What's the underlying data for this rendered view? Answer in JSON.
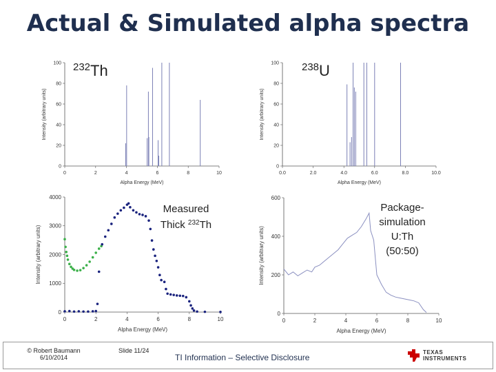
{
  "page": {
    "title": "Actual & Simulated alpha spectra"
  },
  "footer": {
    "author": "© Robert Baumann",
    "date": "6/10/2014",
    "slide": "Slide 11/24",
    "classification": "TI Information – Selective Disclosure",
    "logo_line1": "TEXAS",
    "logo_line2": "INSTRUMENTS",
    "logo_color": "#cc0000"
  },
  "chart_data": [
    {
      "id": "th232-lines",
      "type": "bar",
      "label_mass": "232",
      "label_element": "Th",
      "xlabel": "Alpha Energy (MeV)",
      "ylabel": "Intensity (arbitrary units)",
      "xlim": [
        0,
        10
      ],
      "ylim": [
        0,
        100
      ],
      "xticks": [
        "0",
        "2",
        "4",
        "6",
        "8",
        "10"
      ],
      "yticks": [
        "0",
        "20",
        "40",
        "60",
        "80",
        "100"
      ],
      "color": "#7a7fb5",
      "lines": [
        {
          "x": 3.95,
          "y": 22
        },
        {
          "x": 4.01,
          "y": 78
        },
        {
          "x": 5.34,
          "y": 27
        },
        {
          "x": 5.42,
          "y": 72
        },
        {
          "x": 5.45,
          "y": 28
        },
        {
          "x": 5.69,
          "y": 95
        },
        {
          "x": 6.05,
          "y": 25
        },
        {
          "x": 6.09,
          "y": 10
        },
        {
          "x": 6.29,
          "y": 100
        },
        {
          "x": 6.78,
          "y": 100
        },
        {
          "x": 8.78,
          "y": 64
        }
      ]
    },
    {
      "id": "u238-lines",
      "type": "bar",
      "label_mass": "238",
      "label_element": "U",
      "xlabel": "Alpha Energy (MeV)",
      "ylabel": "Intensity (arbitrary units)",
      "xlim": [
        0,
        10
      ],
      "ylim": [
        0,
        100
      ],
      "xticks": [
        "0.0",
        "2.0",
        "4.0",
        "6.0",
        "8.0",
        "10.0"
      ],
      "yticks": [
        "0",
        "20",
        "40",
        "60",
        "80",
        "100"
      ],
      "color": "#7a7fb5",
      "lines": [
        {
          "x": 4.2,
          "y": 79
        },
        {
          "x": 4.4,
          "y": 23
        },
        {
          "x": 4.5,
          "y": 28
        },
        {
          "x": 4.6,
          "y": 100
        },
        {
          "x": 4.68,
          "y": 76
        },
        {
          "x": 4.77,
          "y": 72
        },
        {
          "x": 5.3,
          "y": 100
        },
        {
          "x": 5.49,
          "y": 100
        },
        {
          "x": 6.0,
          "y": 100
        },
        {
          "x": 7.69,
          "y": 100
        }
      ]
    },
    {
      "id": "measured-thick-th",
      "type": "scatter",
      "annotation_line1": "Measured",
      "annotation_prefix": "Thick",
      "annotation_mass": "232",
      "annotation_element": "Th",
      "xlabel": "Alpha Energy (MeV)",
      "ylabel": "Intensity (arbitrary units)",
      "xlim": [
        0,
        10
      ],
      "ylim": [
        0,
        4500
      ],
      "xticks": [
        "0",
        "2",
        "4",
        "6",
        "8",
        "10"
      ],
      "yticks": [
        "0",
        "1000",
        "2000",
        "3000",
        "4000"
      ],
      "series": [
        {
          "color": "#3cb04a",
          "points": [
            [
              0.0,
              2850
            ],
            [
              0.05,
              2550
            ],
            [
              0.1,
              2350
            ],
            [
              0.15,
              2200
            ],
            [
              0.2,
              2050
            ],
            [
              0.3,
              1880
            ],
            [
              0.4,
              1770
            ],
            [
              0.5,
              1700
            ],
            [
              0.6,
              1650
            ],
            [
              0.8,
              1620
            ],
            [
              1.0,
              1640
            ],
            [
              1.2,
              1720
            ],
            [
              1.4,
              1830
            ],
            [
              1.6,
              1970
            ],
            [
              1.8,
              2140
            ],
            [
              2.0,
              2320
            ],
            [
              2.2,
              2480
            ],
            [
              2.35,
              2580
            ]
          ]
        },
        {
          "color": "#1a237e",
          "points": [
            [
              0.0,
              30
            ],
            [
              0.3,
              40
            ],
            [
              0.6,
              20
            ],
            [
              0.9,
              30
            ],
            [
              1.2,
              20
            ],
            [
              1.5,
              20
            ],
            [
              1.8,
              30
            ],
            [
              2.0,
              40
            ],
            [
              2.1,
              320
            ],
            [
              2.2,
              1580
            ],
            [
              2.4,
              2650
            ],
            [
              2.6,
              2950
            ],
            [
              2.8,
              3200
            ],
            [
              3.0,
              3450
            ],
            [
              3.2,
              3700
            ],
            [
              3.4,
              3850
            ],
            [
              3.6,
              3980
            ],
            [
              3.8,
              4080
            ],
            [
              4.0,
              4200
            ],
            [
              4.1,
              4250
            ],
            [
              4.2,
              4100
            ],
            [
              4.4,
              3980
            ],
            [
              4.6,
              3900
            ],
            [
              4.8,
              3830
            ],
            [
              5.0,
              3800
            ],
            [
              5.2,
              3750
            ],
            [
              5.4,
              3580
            ],
            [
              5.5,
              3250
            ],
            [
              5.6,
              2800
            ],
            [
              5.7,
              2450
            ],
            [
              5.8,
              2200
            ],
            [
              5.9,
              2000
            ],
            [
              6.0,
              1750
            ],
            [
              6.1,
              1450
            ],
            [
              6.2,
              1250
            ],
            [
              6.4,
              1180
            ],
            [
              6.5,
              900
            ],
            [
              6.6,
              720
            ],
            [
              6.8,
              690
            ],
            [
              7.0,
              670
            ],
            [
              7.2,
              650
            ],
            [
              7.4,
              640
            ],
            [
              7.6,
              630
            ],
            [
              7.8,
              580
            ],
            [
              8.0,
              420
            ],
            [
              8.1,
              260
            ],
            [
              8.2,
              140
            ],
            [
              8.3,
              60
            ],
            [
              8.5,
              20
            ],
            [
              9.0,
              10
            ],
            [
              10.0,
              5
            ]
          ]
        }
      ]
    },
    {
      "id": "package-simulation",
      "type": "line",
      "annotation_lines": [
        "Package-",
        "simulation",
        "U:Th",
        "(50:50)"
      ],
      "xlabel": "Alpha Energy (MeV)",
      "ylabel": "Intensity (arbitrary units)",
      "xlim": [
        0,
        10
      ],
      "ylim": [
        0,
        600
      ],
      "xticks": [
        "0",
        "2",
        "4",
        "6",
        "8",
        "10"
      ],
      "yticks": [
        "0",
        "200",
        "400",
        "600"
      ],
      "color": "#8a8fc0",
      "points": [
        [
          0.0,
          230
        ],
        [
          0.3,
          200
        ],
        [
          0.6,
          215
        ],
        [
          0.9,
          195
        ],
        [
          1.2,
          210
        ],
        [
          1.5,
          225
        ],
        [
          1.8,
          215
        ],
        [
          2.0,
          240
        ],
        [
          2.3,
          250
        ],
        [
          2.6,
          270
        ],
        [
          2.9,
          290
        ],
        [
          3.2,
          310
        ],
        [
          3.5,
          330
        ],
        [
          3.8,
          360
        ],
        [
          4.1,
          390
        ],
        [
          4.4,
          405
        ],
        [
          4.7,
          420
        ],
        [
          5.0,
          450
        ],
        [
          5.3,
          490
        ],
        [
          5.5,
          520
        ],
        [
          5.6,
          430
        ],
        [
          5.8,
          380
        ],
        [
          6.0,
          200
        ],
        [
          6.3,
          150
        ],
        [
          6.6,
          110
        ],
        [
          6.9,
          95
        ],
        [
          7.2,
          85
        ],
        [
          7.5,
          80
        ],
        [
          7.8,
          75
        ],
        [
          8.1,
          70
        ],
        [
          8.4,
          65
        ],
        [
          8.7,
          55
        ],
        [
          9.0,
          20
        ],
        [
          9.2,
          5
        ]
      ]
    }
  ]
}
